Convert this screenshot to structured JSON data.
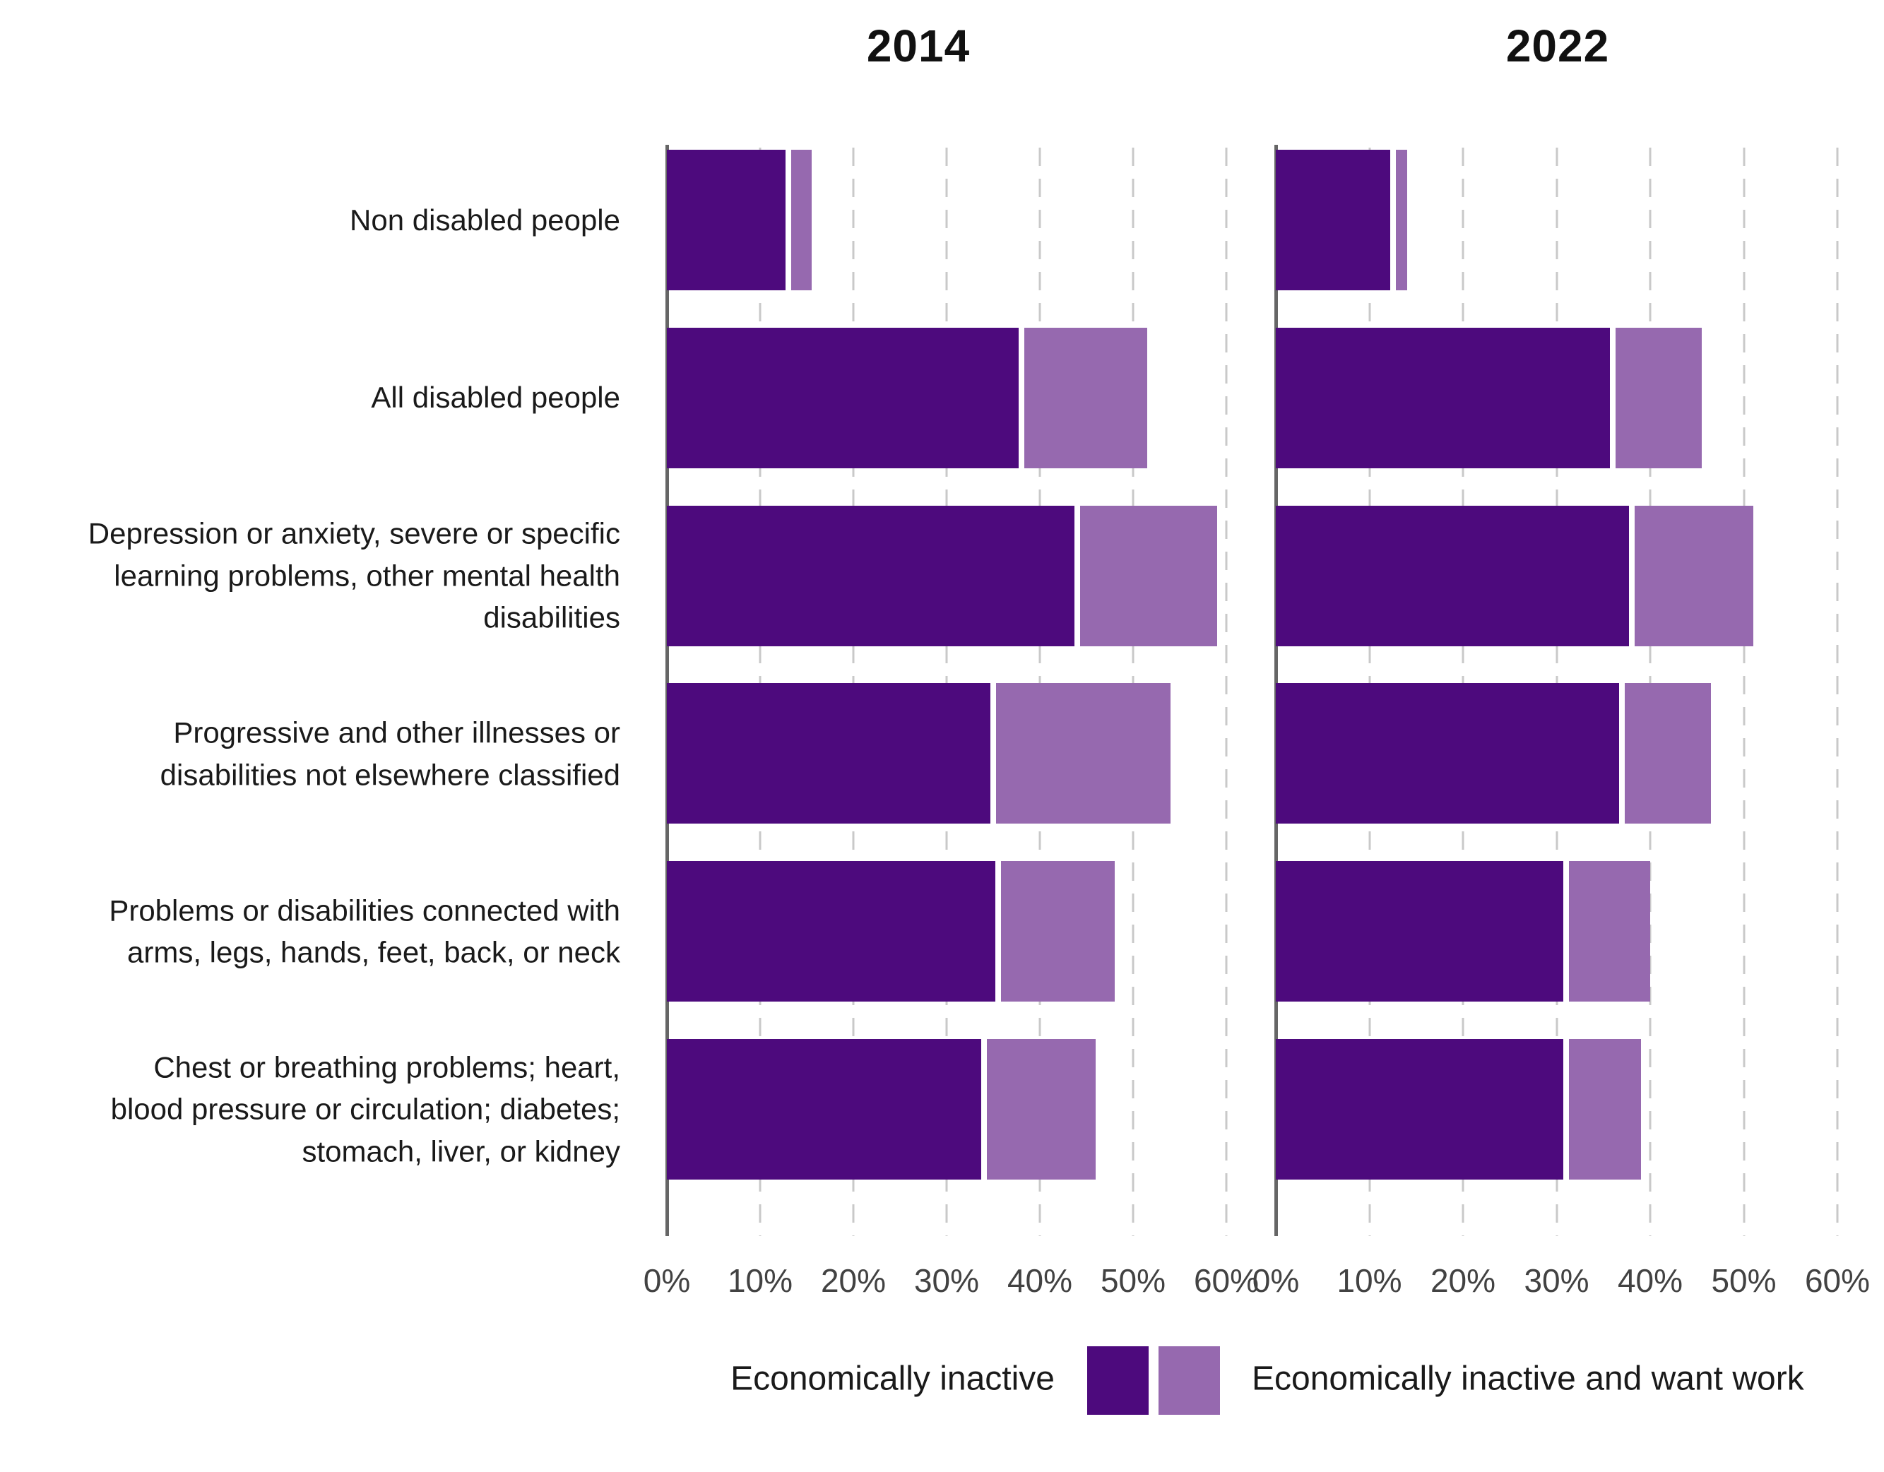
{
  "style": {
    "dark_color": "#4d0a7d",
    "light_color": "#9669af",
    "grid_color": "#c9c9c9",
    "axis_color": "#666666",
    "text_color": "#1a1a1a"
  },
  "chart_data": {
    "type": "bar",
    "orientation": "horizontal-stacked",
    "unit": "percent",
    "grid": "dashed-vertical",
    "x_axis": {
      "min": 0,
      "max": 60,
      "tick_step": 10,
      "tick_labels": [
        "0%",
        "10%",
        "20%",
        "30%",
        "40%",
        "50%",
        "60%"
      ]
    },
    "categories": [
      "Non disabled people",
      "All disabled people",
      "Depression or anxiety, severe or specific\nlearning problems, other mental health\ndisabilities",
      "Progressive and other illnesses or\ndisabilities not elsewhere classified",
      "Problems or disabilities connected with\narms, legs, hands, feet, back, or neck",
      "Chest or breathing problems; heart,\nblood pressure or circulation; diabetes;\nstomach, liver, or kidney"
    ],
    "panels": [
      {
        "title": "2014",
        "series": [
          {
            "name": "Economically inactive",
            "color": "#4d0a7d",
            "values": [
              13,
              38,
              44,
              35,
              35.5,
              34
            ]
          },
          {
            "name": "Economically inactive and want work",
            "color": "#9669af",
            "values": [
              2.5,
              13.5,
              15,
              19,
              12.5,
              12
            ]
          }
        ]
      },
      {
        "title": "2022",
        "series": [
          {
            "name": "Economically inactive",
            "color": "#4d0a7d",
            "values": [
              12.5,
              36,
              38,
              37,
              31,
              31
            ]
          },
          {
            "name": "Economically inactive and want work",
            "color": "#9669af",
            "values": [
              1.5,
              9.5,
              13,
              9.5,
              9,
              8
            ]
          }
        ]
      }
    ],
    "legend": [
      {
        "label": "Economically inactive",
        "color": "#4d0a7d"
      },
      {
        "label": "Economically inactive and want work",
        "color": "#9669af"
      }
    ]
  }
}
